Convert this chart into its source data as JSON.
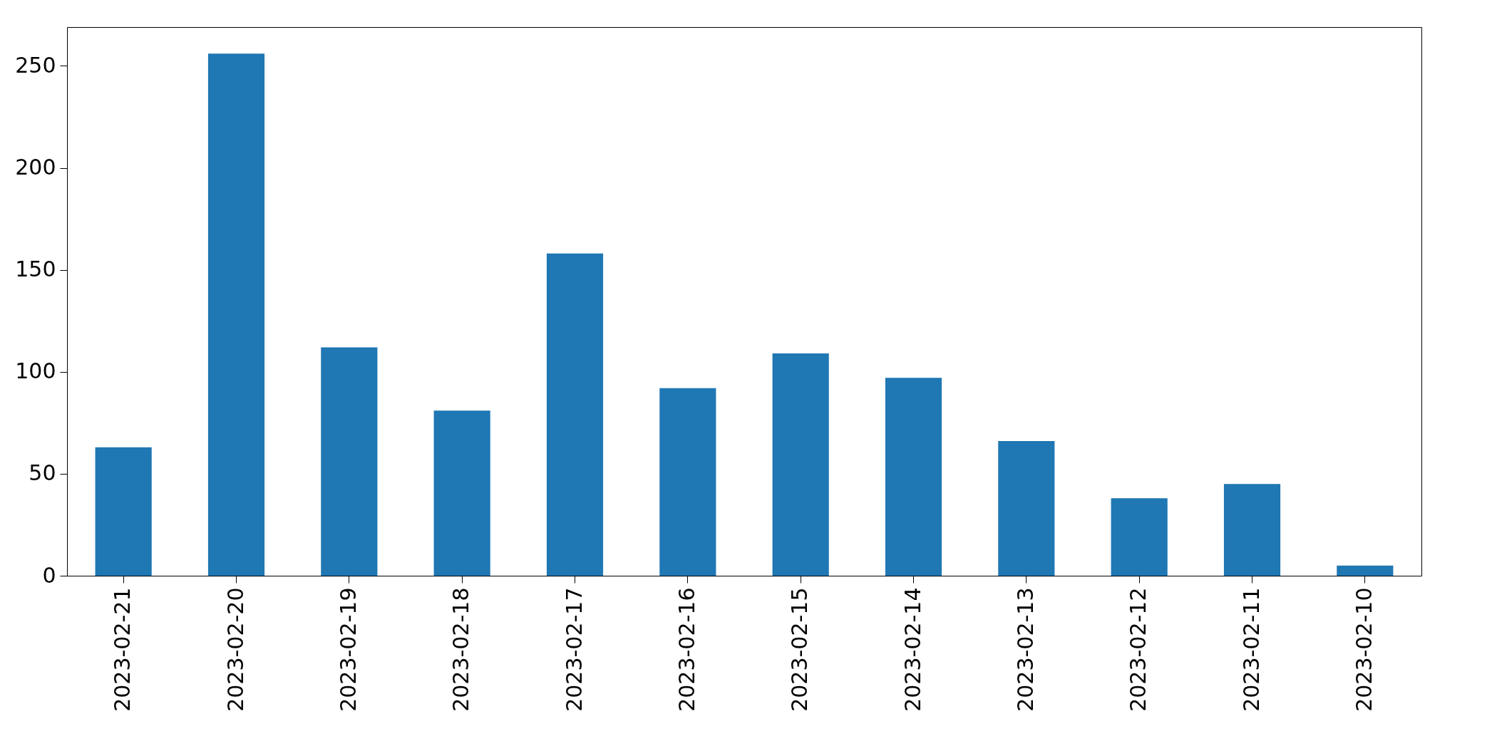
{
  "chart_data": {
    "type": "bar",
    "categories": [
      "2023-02-21",
      "2023-02-20",
      "2023-02-19",
      "2023-02-18",
      "2023-02-17",
      "2023-02-16",
      "2023-02-15",
      "2023-02-14",
      "2023-02-13",
      "2023-02-12",
      "2023-02-11",
      "2023-02-10"
    ],
    "values": [
      63,
      256,
      112,
      81,
      158,
      92,
      109,
      97,
      66,
      38,
      45,
      5
    ],
    "color": "#1f77b4",
    "ylim": [
      0,
      269
    ],
    "yticks": [
      0,
      50,
      100,
      150,
      200,
      250
    ],
    "grid": false
  }
}
